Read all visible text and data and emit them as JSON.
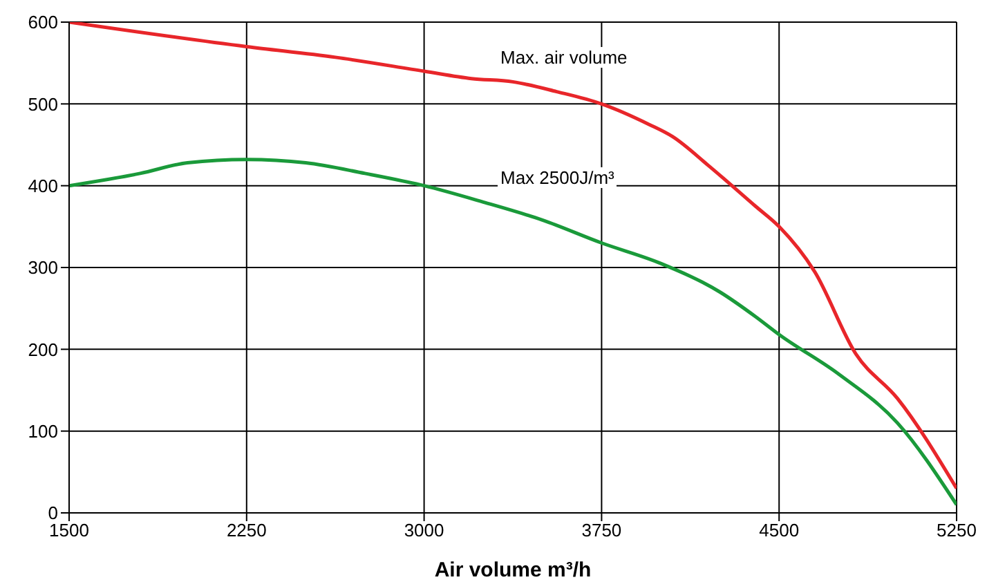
{
  "chart_data": {
    "type": "line",
    "xlabel": "Air volume m³/h",
    "xlim": [
      1500,
      5250
    ],
    "xticks": [
      1500,
      2250,
      3000,
      3750,
      4500,
      5250
    ],
    "ylim": [
      0,
      600
    ],
    "yticks": [
      0,
      100,
      200,
      300,
      400,
      500,
      600
    ],
    "grid": true,
    "marker": "none",
    "line_style": "solid",
    "annotations": [
      "Max. air volume",
      "Max 2500J/m³"
    ],
    "series": [
      {
        "color": "#e8262a",
        "x": [
          1500,
          2250,
          2625,
          3000,
          3200,
          3375,
          3560,
          3750,
          3950,
          4050,
          4200,
          4400,
          4500,
          4650,
          4825,
          5000,
          5250
        ],
        "values": [
          600,
          570,
          557,
          540,
          531,
          527,
          515,
          500,
          475,
          460,
          425,
          375,
          350,
          295,
          194,
          140,
          30
        ]
      },
      {
        "color": "#1a9a3a",
        "x": [
          1500,
          1800,
          2000,
          2250,
          2500,
          2750,
          3000,
          3250,
          3500,
          3750,
          4000,
          4250,
          4400,
          4500,
          4750,
          5000,
          5250
        ],
        "values": [
          400,
          415,
          428,
          432,
          428,
          415,
          400,
          380,
          358,
          330,
          305,
          270,
          240,
          218,
          170,
          110,
          10
        ]
      }
    ]
  }
}
